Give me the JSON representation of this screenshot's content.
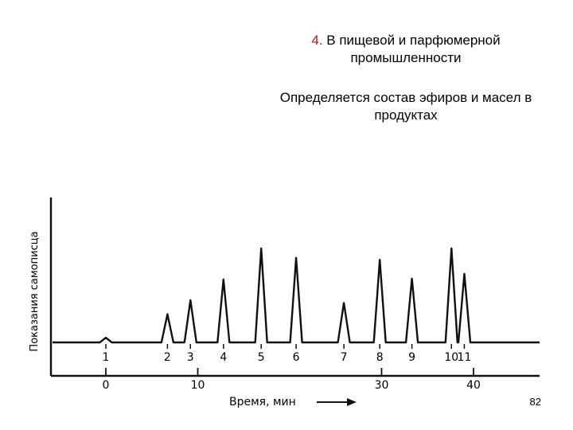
{
  "slide": {
    "heading_number": "4.",
    "heading_text": "В пищевой и парфюмерной промышленности",
    "body_text": "Определяется состав эфиров и масел в продуктах",
    "page_number": "82"
  },
  "chromatogram": {
    "y_label": "Показания самописца",
    "x_label": "Время, мин",
    "x_ticks": [
      "0",
      "10",
      "30",
      "40"
    ],
    "peaks": [
      {
        "label": "1",
        "time": 0.0,
        "rel_height": 0.05
      },
      {
        "label": "2",
        "time": 6.7,
        "rel_height": 0.3
      },
      {
        "label": "3",
        "time": 9.2,
        "rel_height": 0.45
      },
      {
        "label": "4",
        "time": 12.8,
        "rel_height": 0.67
      },
      {
        "label": "5",
        "time": 16.9,
        "rel_height": 1.0
      },
      {
        "label": "6",
        "time": 20.7,
        "rel_height": 0.9
      },
      {
        "label": "7",
        "time": 25.9,
        "rel_height": 0.42
      },
      {
        "label": "8",
        "time": 29.8,
        "rel_height": 0.88
      },
      {
        "label": "9",
        "time": 33.3,
        "rel_height": 0.68
      },
      {
        "label": "10",
        "time": 37.6,
        "rel_height": 1.0
      },
      {
        "label": "11",
        "time": 39.0,
        "rel_height": 0.73
      }
    ]
  }
}
